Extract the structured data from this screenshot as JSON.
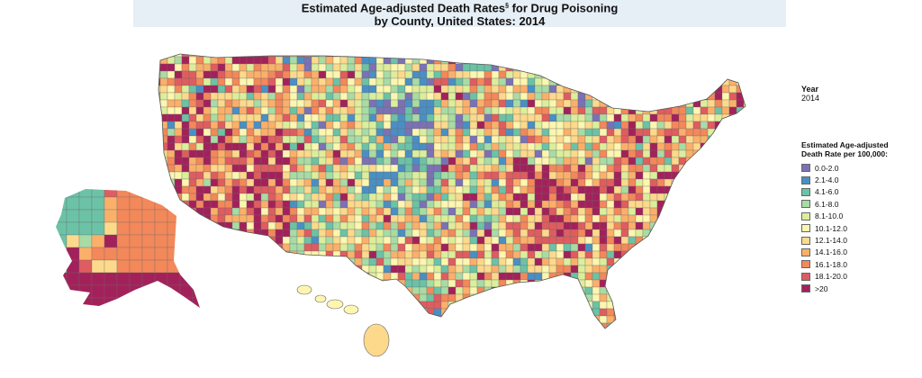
{
  "title": {
    "line1_a": "Estimated Age-adjusted Death Rates",
    "line1_sup": "§",
    "line1_b": " for Drug Poisoning",
    "line2": "by County, United States:  2014"
  },
  "year": {
    "label": "Year",
    "value": "2014"
  },
  "legend": {
    "title_line1": "Estimated Age-adjusted",
    "title_line2": "Death Rate per 100,000:",
    "items": [
      {
        "label": "0.0-2.0",
        "color": "#7b72b5"
      },
      {
        "label": "2.1-4.0",
        "color": "#4a8fc4"
      },
      {
        "label": "4.1-6.0",
        "color": "#6cc2a6"
      },
      {
        "label": "6.1-8.0",
        "color": "#a9dba5"
      },
      {
        "label": "8.1-10.0",
        "color": "#dcee9b"
      },
      {
        "label": "10.1-12.0",
        "color": "#fdf6b0"
      },
      {
        "label": "12.1-14.0",
        "color": "#fdd98c"
      },
      {
        "label": "14.1-16.0",
        "color": "#fbb06a"
      },
      {
        "label": "16.1-18.0",
        "color": "#f3885a"
      },
      {
        "label": "18.1-20.0",
        "color": "#df5d5f"
      },
      {
        "label": ">20",
        "color": "#a3215a"
      }
    ]
  }
}
